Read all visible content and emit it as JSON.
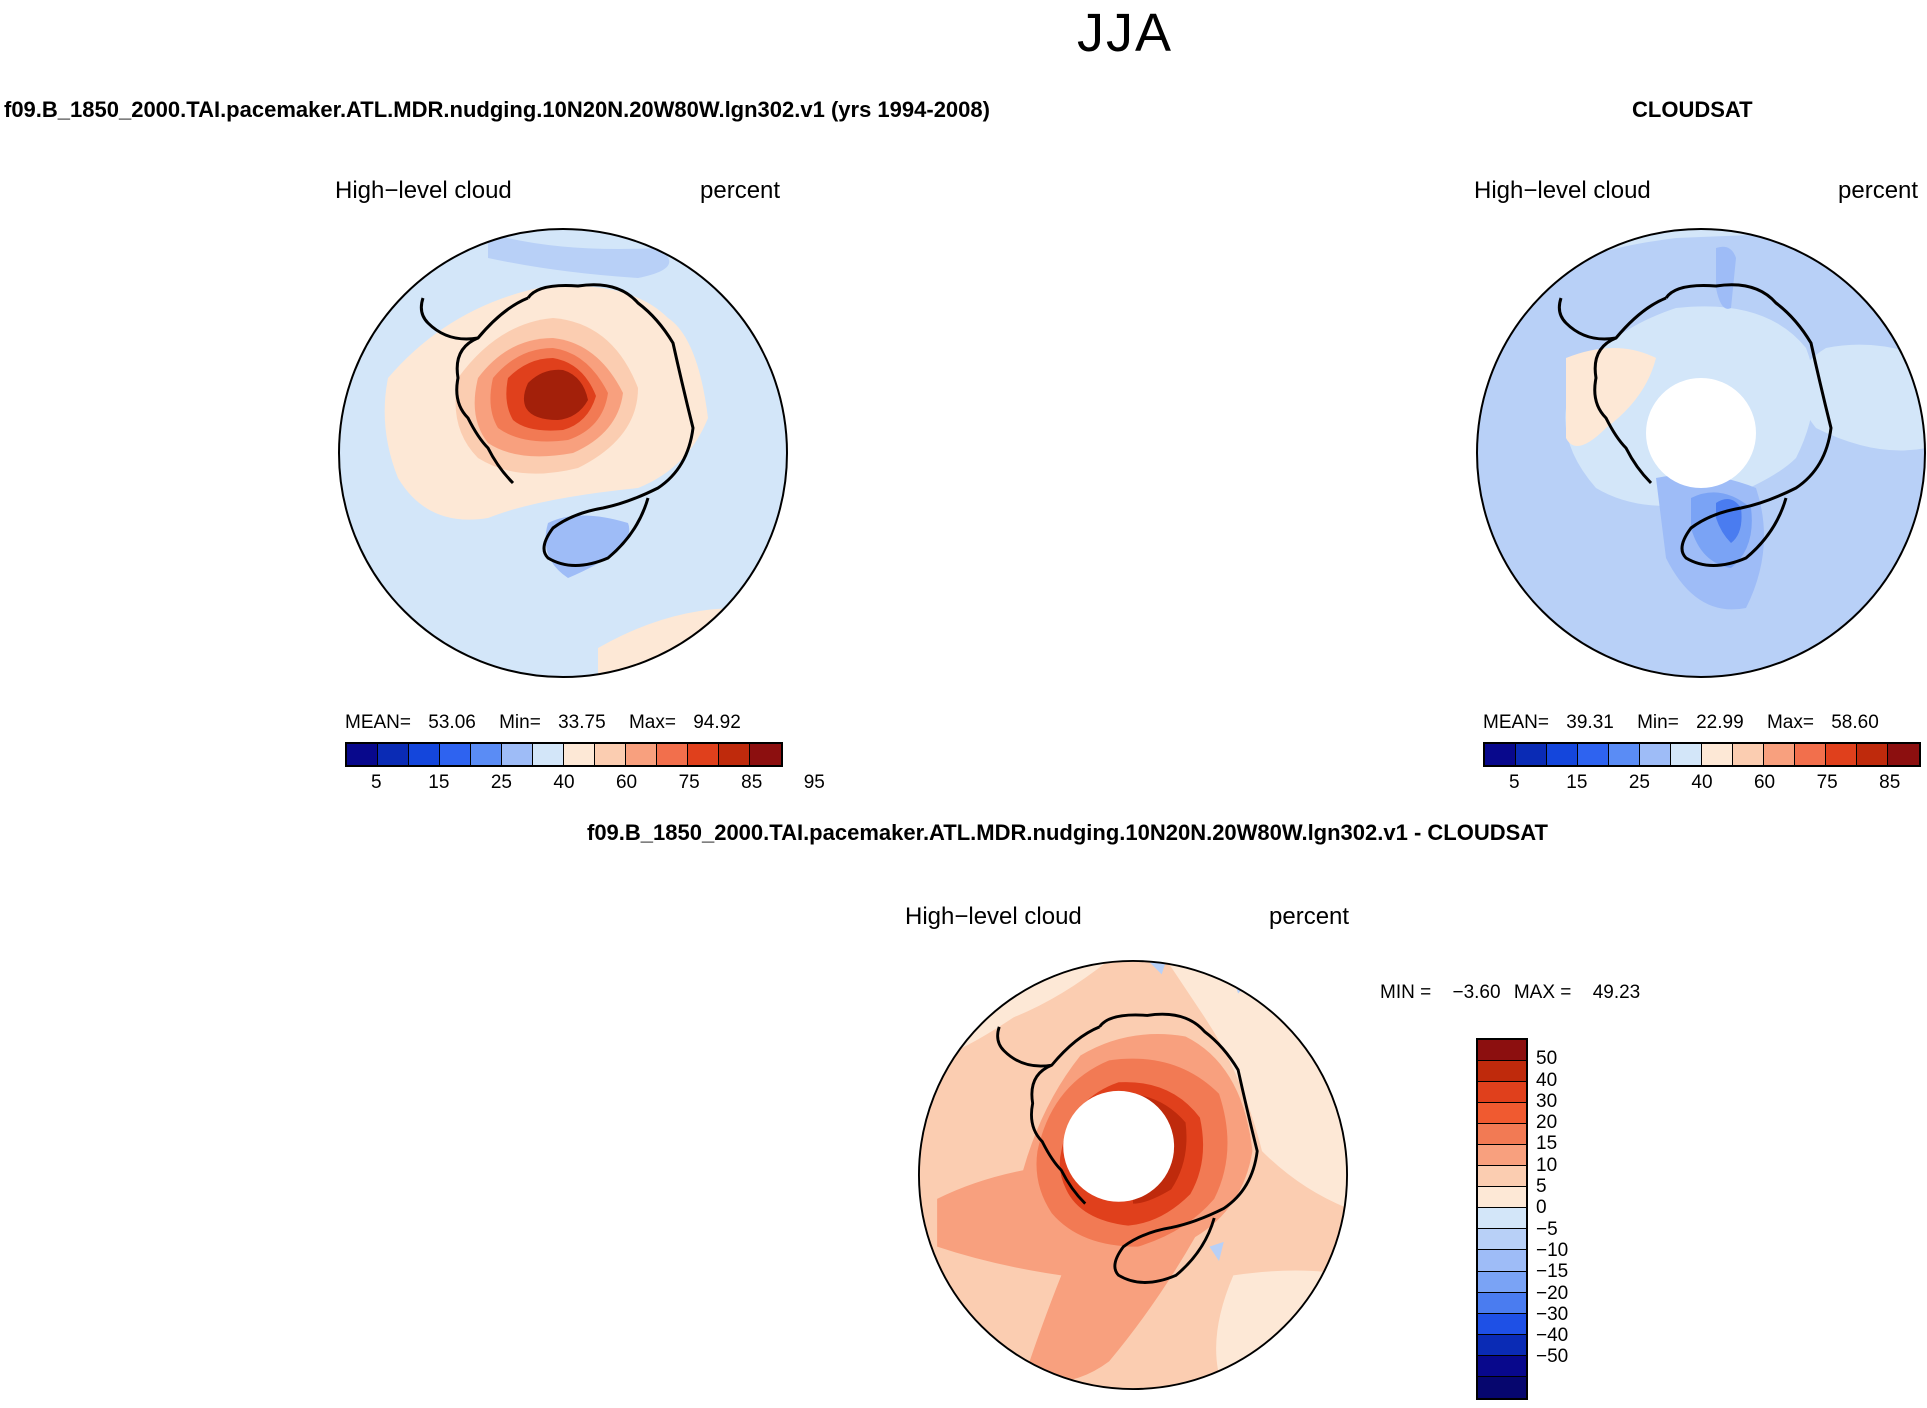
{
  "season": "JJA",
  "titles": {
    "model": "f09.B_1850_2000.TAI.pacemaker.ATL.MDR.nudging.10N20N.20W80W.lgn302.v1 (yrs 1994-2008)",
    "obs": "CLOUDSAT",
    "diff": "f09.B_1850_2000.TAI.pacemaker.ATL.MDR.nudging.10N20N.20W80W.lgn302.v1 - CLOUDSAT"
  },
  "panels": [
    {
      "id": "model",
      "variable": "High−level cloud",
      "units": "percent",
      "stats": {
        "mean_label": "MEAN=",
        "mean": "53.06",
        "min_label": "Min=",
        "min": "33.75",
        "max_label": "Max=",
        "max": "94.92"
      }
    },
    {
      "id": "obs",
      "variable": "High−level cloud",
      "units": "percent",
      "stats": {
        "mean_label": "MEAN=",
        "mean": "39.31",
        "min_label": "Min=",
        "min": "22.99",
        "max_label": "Max=",
        "max": "58.60"
      }
    },
    {
      "id": "diff",
      "variable": "High−level cloud",
      "units": "percent",
      "stats": {
        "min_label": "MIN =",
        "min": "−3.60",
        "max_label": "MAX =",
        "max": "49.23"
      }
    }
  ],
  "colorbar_abs": {
    "colors": [
      "#08088c",
      "#0a2bb5",
      "#1446dc",
      "#2e63f0",
      "#5a8cf5",
      "#9ebcf7",
      "#d3e6f9",
      "#fde8d6",
      "#fbcdb1",
      "#f8a07e",
      "#f26f4c",
      "#e0401c",
      "#bf2a0c",
      "#8c0f0f"
    ],
    "ticks": [
      "5",
      "15",
      "25",
      "40",
      "60",
      "75",
      "85",
      "95"
    ]
  },
  "colorbar_diff": {
    "colors": [
      "#8c0f0f",
      "#bf2a0c",
      "#e0401c",
      "#f05a30",
      "#f27a54",
      "#f8a07e",
      "#fbcdb1",
      "#fde8d6",
      "#d3e6f9",
      "#b8d0f7",
      "#9ebcf7",
      "#7aa3f5",
      "#4a7cf0",
      "#1e50e6",
      "#0a2bb5",
      "#08088c",
      "#06066e"
    ],
    "ticks": [
      "50",
      "40",
      "30",
      "20",
      "15",
      "10",
      "5",
      "0",
      "−5",
      "−10",
      "−15",
      "−20",
      "−30",
      "−40",
      "−50"
    ]
  },
  "map_colors": {
    "bg_abs": "#d3e6f9",
    "lightblue": "#b8d0f7",
    "medblue": "#9ebcf7",
    "blue": "#7aa3f5",
    "deepblue": "#4a7cf0",
    "peach": "#fde8d6",
    "salmon": "#fbcdb1",
    "orange1": "#f8a07e",
    "orange2": "#f27a54",
    "red1": "#e0401c",
    "red2": "#bf2a0c",
    "red3": "#a3200a",
    "land_outline": "#000000",
    "missing": "#ffffff"
  }
}
